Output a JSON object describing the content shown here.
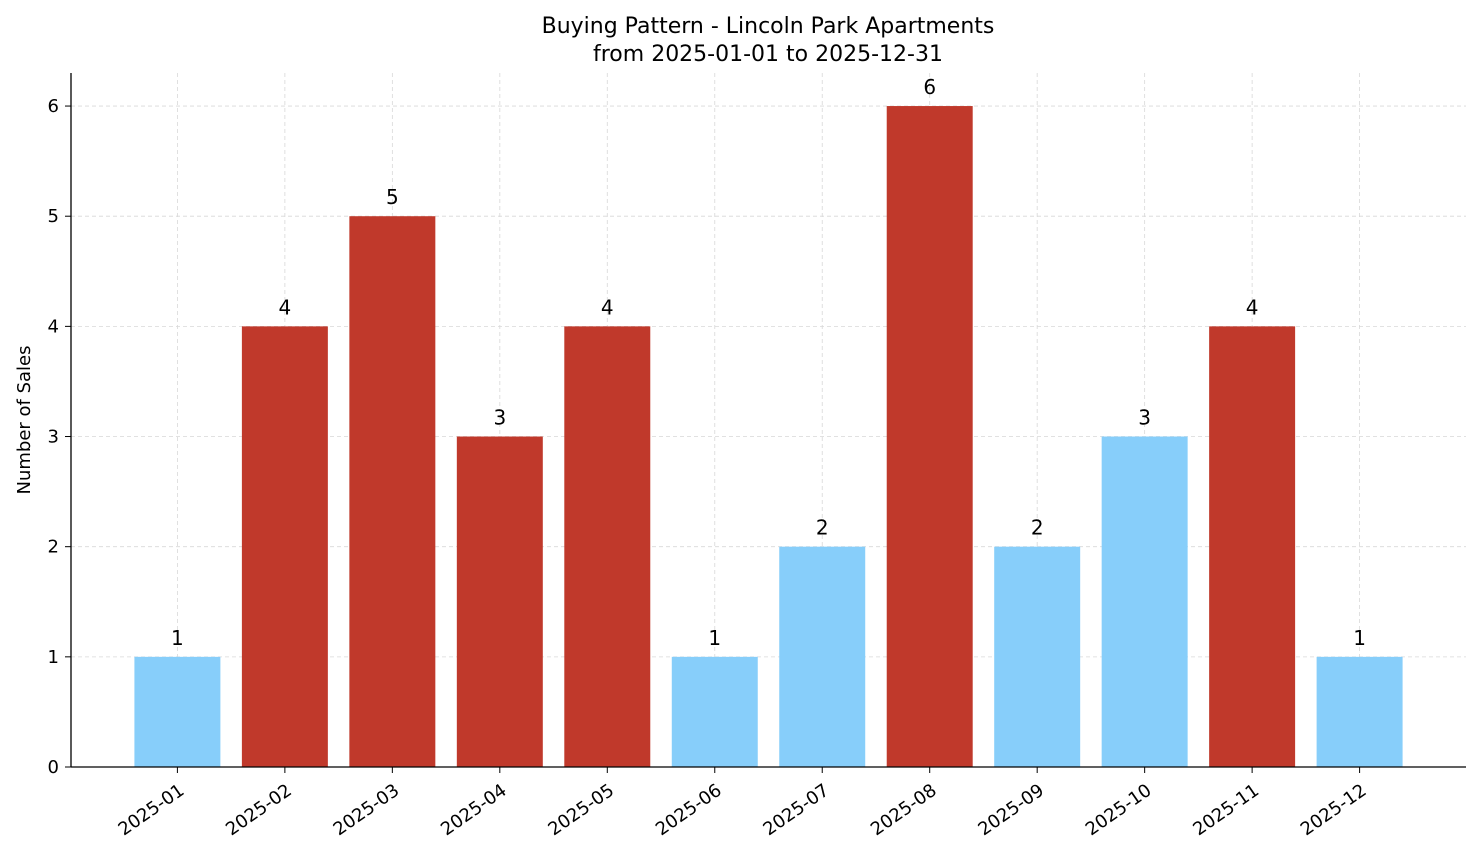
{
  "chart_data": {
    "type": "bar",
    "title": "Buying Pattern - Lincoln Park Apartments",
    "subtitle": "from 2025-01-01 to 2025-12-31",
    "xlabel": "",
    "ylabel": "Number of Sales",
    "categories": [
      "2025-01",
      "2025-02",
      "2025-03",
      "2025-04",
      "2025-05",
      "2025-06",
      "2025-07",
      "2025-08",
      "2025-09",
      "2025-10",
      "2025-11",
      "2025-12"
    ],
    "values": [
      1,
      4,
      5,
      3,
      4,
      1,
      2,
      6,
      2,
      3,
      4,
      1
    ],
    "bar_colors": [
      "#87cefa",
      "#c0392b",
      "#c0392b",
      "#c0392b",
      "#c0392b",
      "#87cefa",
      "#87cefa",
      "#c0392b",
      "#87cefa",
      "#87cefa",
      "#c0392b",
      "#87cefa"
    ],
    "ylim": [
      0,
      6.3
    ],
    "yticks": [
      0,
      1,
      2,
      3,
      4,
      5,
      6
    ],
    "grid": true,
    "data_labels": true
  }
}
